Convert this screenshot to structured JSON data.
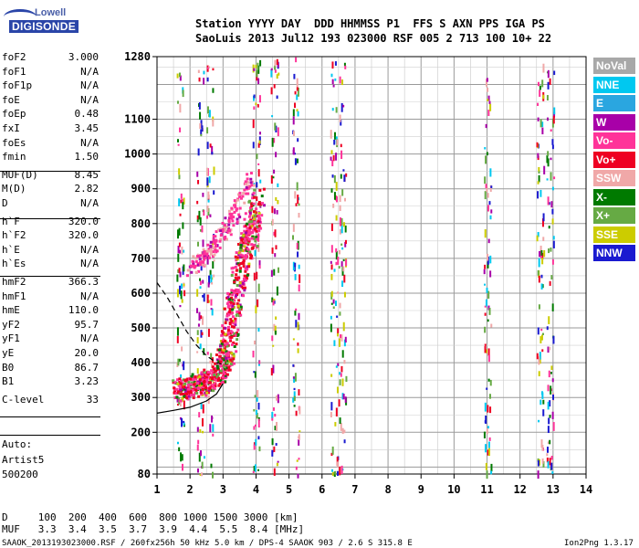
{
  "logo": {
    "brand_top": "Lowell",
    "brand_main": "DIGISONDE"
  },
  "header": {
    "line1": "Station YYYY DAY  DDD HHMMSS P1  FFS S AXN PPS IGA PS",
    "line2": "SaoLuis 2013 Jul12 193 023000 RSF 005 2 713 100 10+ 22"
  },
  "parameters": [
    {
      "label": "foF2",
      "value": "3.000"
    },
    {
      "label": "foF1",
      "value": "N/A"
    },
    {
      "label": "foF1p",
      "value": "N/A"
    },
    {
      "label": "foE",
      "value": "N/A"
    },
    {
      "label": "foEp",
      "value": "0.48"
    },
    {
      "label": "fxI",
      "value": "3.45"
    },
    {
      "label": "foEs",
      "value": "N/A"
    },
    {
      "label": "fmin",
      "value": "1.50"
    },
    {
      "label": "MUF(D)",
      "value": "8.45"
    },
    {
      "label": "M(D)",
      "value": "2.82"
    },
    {
      "label": "D",
      "value": "N/A"
    },
    {
      "label": "h`F",
      "value": "320.0"
    },
    {
      "label": "h`F2",
      "value": "320.0"
    },
    {
      "label": "h`E",
      "value": "N/A"
    },
    {
      "label": "h`Es",
      "value": "N/A"
    },
    {
      "label": "hmF2",
      "value": "366.3"
    },
    {
      "label": "hmF1",
      "value": "N/A"
    },
    {
      "label": "hmE",
      "value": "110.0"
    },
    {
      "label": "yF2",
      "value": "95.7"
    },
    {
      "label": "yF1",
      "value": "N/A"
    },
    {
      "label": "yE",
      "value": "20.0"
    },
    {
      "label": "B0",
      "value": "86.7"
    },
    {
      "label": "B1",
      "value": "3.23"
    },
    {
      "label": "C-level",
      "value": "33"
    }
  ],
  "autoscale": {
    "line1": "Auto:",
    "line2": "Artist5",
    "line3": "500200"
  },
  "legend": [
    {
      "label": "NoVal",
      "color": "#a8a8a8",
      "text_color": "#ffffff"
    },
    {
      "label": "NNE",
      "color": "#00c8f0",
      "text_color": "#ffffff"
    },
    {
      "label": "E",
      "color": "#2aa6e0",
      "text_color": "#ffffff"
    },
    {
      "label": "W",
      "color": "#a800a8",
      "text_color": "#ffffff"
    },
    {
      "label": "Vo-",
      "color": "#ff3399",
      "text_color": "#ffffff"
    },
    {
      "label": "Vo+",
      "color": "#ee0022",
      "text_color": "#ffffff"
    },
    {
      "label": "SSW",
      "color": "#f0a8a8",
      "text_color": "#ffffff"
    },
    {
      "label": "X-",
      "color": "#007a00",
      "text_color": "#ffffff"
    },
    {
      "label": "X+",
      "color": "#66aa44",
      "text_color": "#ffffff"
    },
    {
      "label": "SSE",
      "color": "#cccc00",
      "text_color": "#ffffff"
    },
    {
      "label": "NNW",
      "color": "#1a1ad0",
      "text_color": "#ffffff"
    }
  ],
  "muf_table": {
    "d_line": "D     100  200  400  600  800 1000 1500 3000 [km]",
    "muf_line": "MUF   3.3  3.4  3.5  3.7  3.9  4.4  5.5  8.4 [MHz]"
  },
  "footer": {
    "left": "SAAOK_2013193023000.RSF / 260fx256h 50 kHz 5.0 km / DPS-4 SAAOK 903 / 2.6 S 315.8 E",
    "right": "Ion2Png 1.3.17"
  },
  "chart_data": {
    "type": "scatter",
    "title": "",
    "xlabel": "",
    "ylabel": "",
    "x_unit": "MHz",
    "y_unit": "km",
    "xlim": [
      1,
      14
    ],
    "ylim": [
      80,
      1280
    ],
    "x_ticks": [
      "1",
      "2",
      "3",
      "4",
      "5",
      "6",
      "7",
      "8",
      "9",
      "10",
      "11",
      "12",
      "13",
      "14"
    ],
    "y_ticks": [
      "80",
      "200",
      "300",
      "400",
      "500",
      "600",
      "700",
      "800",
      "900",
      "1000",
      "1100",
      "1280"
    ],
    "grid": true,
    "ordinary_trace": [
      [
        1.5,
        322
      ],
      [
        1.7,
        328
      ],
      [
        2.0,
        335
      ],
      [
        2.3,
        345
      ],
      [
        2.6,
        362
      ],
      [
        2.8,
        385
      ],
      [
        2.95,
        420
      ],
      [
        3.05,
        470
      ],
      [
        3.15,
        540
      ],
      [
        3.3,
        620
      ],
      [
        3.5,
        700
      ],
      [
        3.65,
        760
      ],
      [
        3.75,
        800
      ],
      [
        3.9,
        880
      ]
    ],
    "f_layer_echo": [
      [
        2.0,
        672
      ],
      [
        2.3,
        700
      ],
      [
        2.6,
        730
      ],
      [
        2.9,
        770
      ],
      [
        3.2,
        810
      ],
      [
        3.5,
        870
      ],
      [
        3.8,
        935
      ]
    ],
    "profile_curve": [
      [
        1.0,
        255
      ],
      [
        1.5,
        263
      ],
      [
        2.0,
        272
      ],
      [
        2.5,
        290
      ],
      [
        2.8,
        310
      ],
      [
        3.0,
        340
      ]
    ],
    "muf_curve": [
      [
        1.0,
        630
      ],
      [
        1.3,
        590
      ],
      [
        1.6,
        540
      ],
      [
        1.9,
        490
      ],
      [
        2.2,
        450
      ],
      [
        2.5,
        420
      ],
      [
        2.8,
        400
      ],
      [
        3.0,
        395
      ]
    ],
    "interference_columns": [
      1.7,
      2.3,
      2.6,
      4.0,
      4.55,
      5.2,
      6.35,
      6.6,
      11.0,
      12.6,
      12.9
    ]
  }
}
